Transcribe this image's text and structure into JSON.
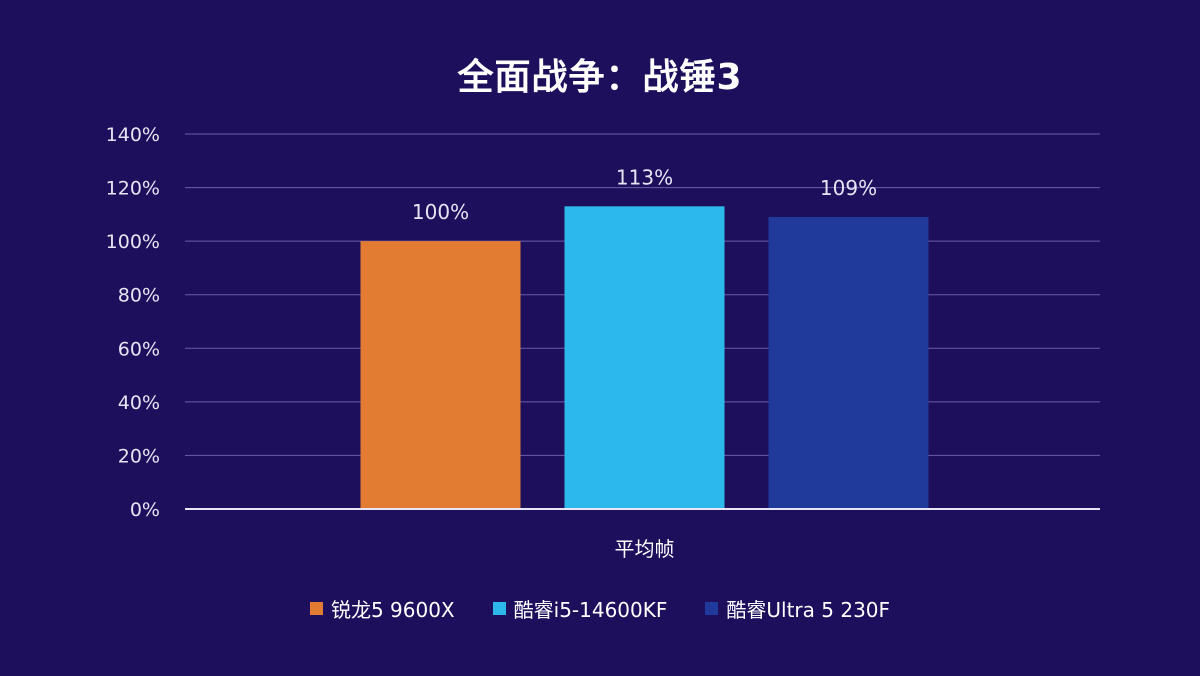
{
  "chart_data": {
    "type": "bar",
    "title": "全面战争：战锤3",
    "categories": [
      "平均帧"
    ],
    "series": [
      {
        "name": "锐龙5 9600X",
        "values": [
          100
        ],
        "label": "100%",
        "color": "#e27c32"
      },
      {
        "name": "酷睿i5-14600KF",
        "values": [
          113
        ],
        "label": "113%",
        "color": "#2db8ec"
      },
      {
        "name": "酷睿Ultra 5 230F",
        "values": [
          109
        ],
        "label": "109%",
        "color": "#1f3a9a"
      }
    ],
    "ylim": [
      0,
      140
    ],
    "yticks": [
      "0%",
      "20%",
      "40%",
      "60%",
      "80%",
      "100%",
      "120%",
      "140%"
    ],
    "ytick_values": [
      0,
      20,
      40,
      60,
      80,
      100,
      120,
      140
    ],
    "xlabel": "",
    "ylabel": "",
    "grid": true,
    "legend_position": "bottom"
  },
  "colors": {
    "background": "#1e0f5c",
    "grid": "#6a5fa8",
    "axis": "#e8e6f5"
  }
}
